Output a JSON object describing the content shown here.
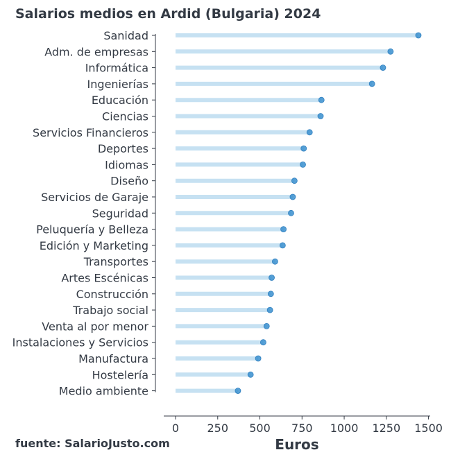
{
  "chart_data": {
    "type": "lollipop",
    "title": "Salarios medios en Ardid (Bulgaria) 2024",
    "xlabel": "Euros",
    "source": "fuente: SalarioJusto.com",
    "xlim": [
      -70,
      1510
    ],
    "xticks": [
      0,
      250,
      500,
      750,
      1000,
      1250,
      1500
    ],
    "grid": false,
    "legend": "none",
    "colors": {
      "stem": "#c6e1f2",
      "dot": "#3a8fcf",
      "text": "#333a44",
      "axis": "#333a44"
    },
    "categories": [
      "Sanidad",
      "Adm. de empresas",
      "Informática",
      "Ingenierías",
      "Educación",
      "Ciencias",
      "Servicios Financieros",
      "Deportes",
      "Idiomas",
      "Diseño",
      "Servicios de Garaje",
      "Seguridad",
      "Peluquería y Belleza",
      "Edición y Marketing",
      "Transportes",
      "Artes Escénicas",
      "Construcción",
      "Trabajo social",
      "Venta al por menor",
      "Instalaciones y Servicios",
      "Manufactura",
      "Hostelería",
      "Medio ambiente"
    ],
    "values": [
      1440,
      1275,
      1230,
      1165,
      865,
      860,
      795,
      760,
      755,
      705,
      695,
      685,
      640,
      635,
      590,
      570,
      565,
      560,
      540,
      520,
      490,
      445,
      370
    ]
  }
}
